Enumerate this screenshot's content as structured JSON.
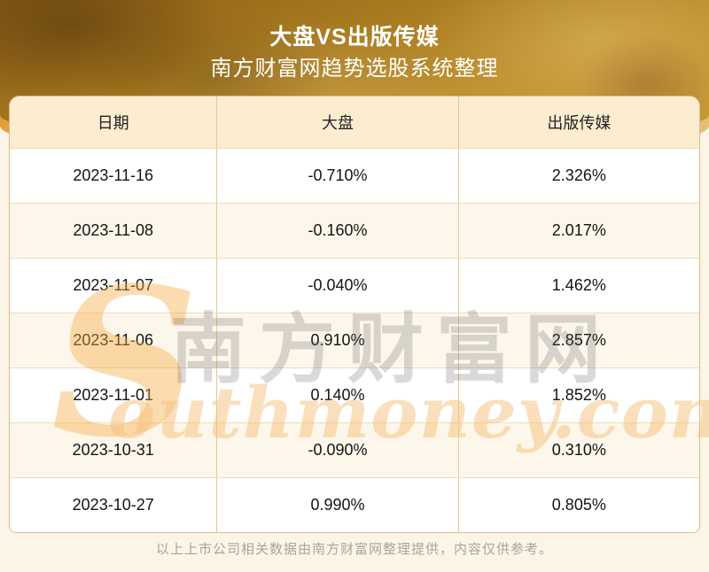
{
  "header": {
    "title": "大盘VS出版传媒",
    "subtitle": "南方财富网趋势选股系统整理"
  },
  "table": {
    "columns": [
      "日期",
      "大盘",
      "出版传媒"
    ],
    "rows": [
      {
        "date": "2023-11-16",
        "market": "-0.710%",
        "sector": "2.326%"
      },
      {
        "date": "2023-11-08",
        "market": "-0.160%",
        "sector": "2.017%"
      },
      {
        "date": "2023-11-07",
        "market": "-0.040%",
        "sector": "1.462%"
      },
      {
        "date": "2023-11-06",
        "market": "0.910%",
        "sector": "2.857%"
      },
      {
        "date": "2023-11-01",
        "market": "0.140%",
        "sector": "1.852%"
      },
      {
        "date": "2023-10-31",
        "market": "-0.090%",
        "sector": "0.310%"
      },
      {
        "date": "2023-10-27",
        "market": "0.990%",
        "sector": "0.805%"
      }
    ]
  },
  "watermark": {
    "initial": "S",
    "cn": "南方财富网",
    "en": "outhmoney.com"
  },
  "footer": {
    "note": "以上上市公司相关数据由南方财富网整理提供，内容仅供参考。"
  },
  "colors": {
    "hero_gold_dark": "#8a5c16",
    "hero_gold_light": "#c99b38",
    "hero_amber": "#e9bc6e",
    "page_background": "#fbf4e7",
    "table_header_bg": "#fcecd0",
    "row_alt_bg": "#fdf7eb",
    "row_plain_bg": "#ffffff",
    "table_border": "#e4c794",
    "title_text": "#ffffff",
    "cell_text": "#141414",
    "footer_text": "#a8a599",
    "watermark_orange": "#f6ac46"
  },
  "chart_data": {
    "type": "table",
    "title": "大盘VS出版传媒",
    "subtitle": "南方财富网趋势选股系统整理",
    "columns": [
      "日期",
      "大盘",
      "出版传媒"
    ],
    "rows": [
      [
        "2023-11-16",
        "-0.710%",
        "2.326%"
      ],
      [
        "2023-11-08",
        "-0.160%",
        "2.017%"
      ],
      [
        "2023-11-07",
        "-0.040%",
        "1.462%"
      ],
      [
        "2023-11-06",
        "0.910%",
        "2.857%"
      ],
      [
        "2023-11-01",
        "0.140%",
        "1.852%"
      ],
      [
        "2023-10-31",
        "-0.090%",
        "0.310%"
      ],
      [
        "2023-10-27",
        "0.990%",
        "0.805%"
      ]
    ]
  }
}
